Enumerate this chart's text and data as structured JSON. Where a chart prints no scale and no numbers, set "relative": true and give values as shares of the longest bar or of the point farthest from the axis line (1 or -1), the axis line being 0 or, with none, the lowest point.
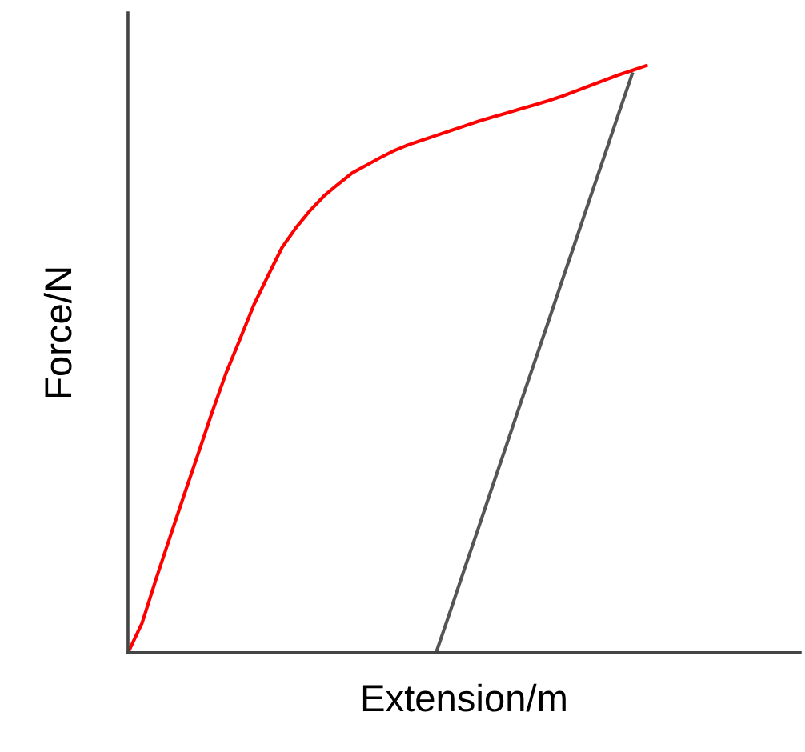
{
  "chart_data": {
    "type": "line",
    "relative": true,
    "xlabel": "Extension/m",
    "ylabel": "Force/N",
    "marker": "none",
    "line_style": "solid",
    "categories": [
      null,
      null,
      null,
      null,
      null,
      null,
      null,
      null,
      null,
      null,
      null,
      null,
      null,
      null,
      null,
      null,
      null,
      null,
      null,
      null,
      null,
      null,
      null,
      null,
      null,
      null,
      null,
      null,
      null,
      null,
      null,
      null,
      null,
      null,
      null,
      null,
      null,
      null,
      null,
      null,
      null,
      null,
      null,
      null,
      null,
      null,
      null,
      null,
      null
    ],
    "series": [
      {
        "color": "#ff0000",
        "values": [
          0,
          0.05,
          0.125,
          0.197,
          0.268,
          0.338,
          0.409,
          0.476,
          0.534,
          0.593,
          0.642,
          0.69,
          0.724,
          0.753,
          0.778,
          0.798,
          0.817,
          0.83,
          0.843,
          0.855,
          0.865,
          0.873,
          0.881,
          0.889,
          0.897,
          0.905,
          0.912,
          0.919,
          0.926,
          0.933,
          0.94,
          0.948,
          0.957,
          0.966,
          0.975,
          0.984,
          0.992,
          1.0,
          null,
          null,
          null,
          null,
          null,
          null,
          null,
          null,
          null,
          null,
          null
        ]
      },
      {
        "color": "#555555",
        "values": [
          null,
          null,
          null,
          null,
          null,
          null,
          null,
          null,
          null,
          null,
          null,
          null,
          null,
          null,
          null,
          null,
          null,
          null,
          null,
          null,
          null,
          null,
          0,
          0.07,
          0.141,
          0.211,
          0.282,
          0.352,
          0.423,
          0.493,
          0.563,
          0.634,
          0.704,
          0.775,
          0.845,
          0.916,
          0.986,
          null,
          null,
          null,
          null,
          null,
          null,
          null,
          null,
          null,
          null,
          null,
          null
        ]
      }
    ]
  }
}
